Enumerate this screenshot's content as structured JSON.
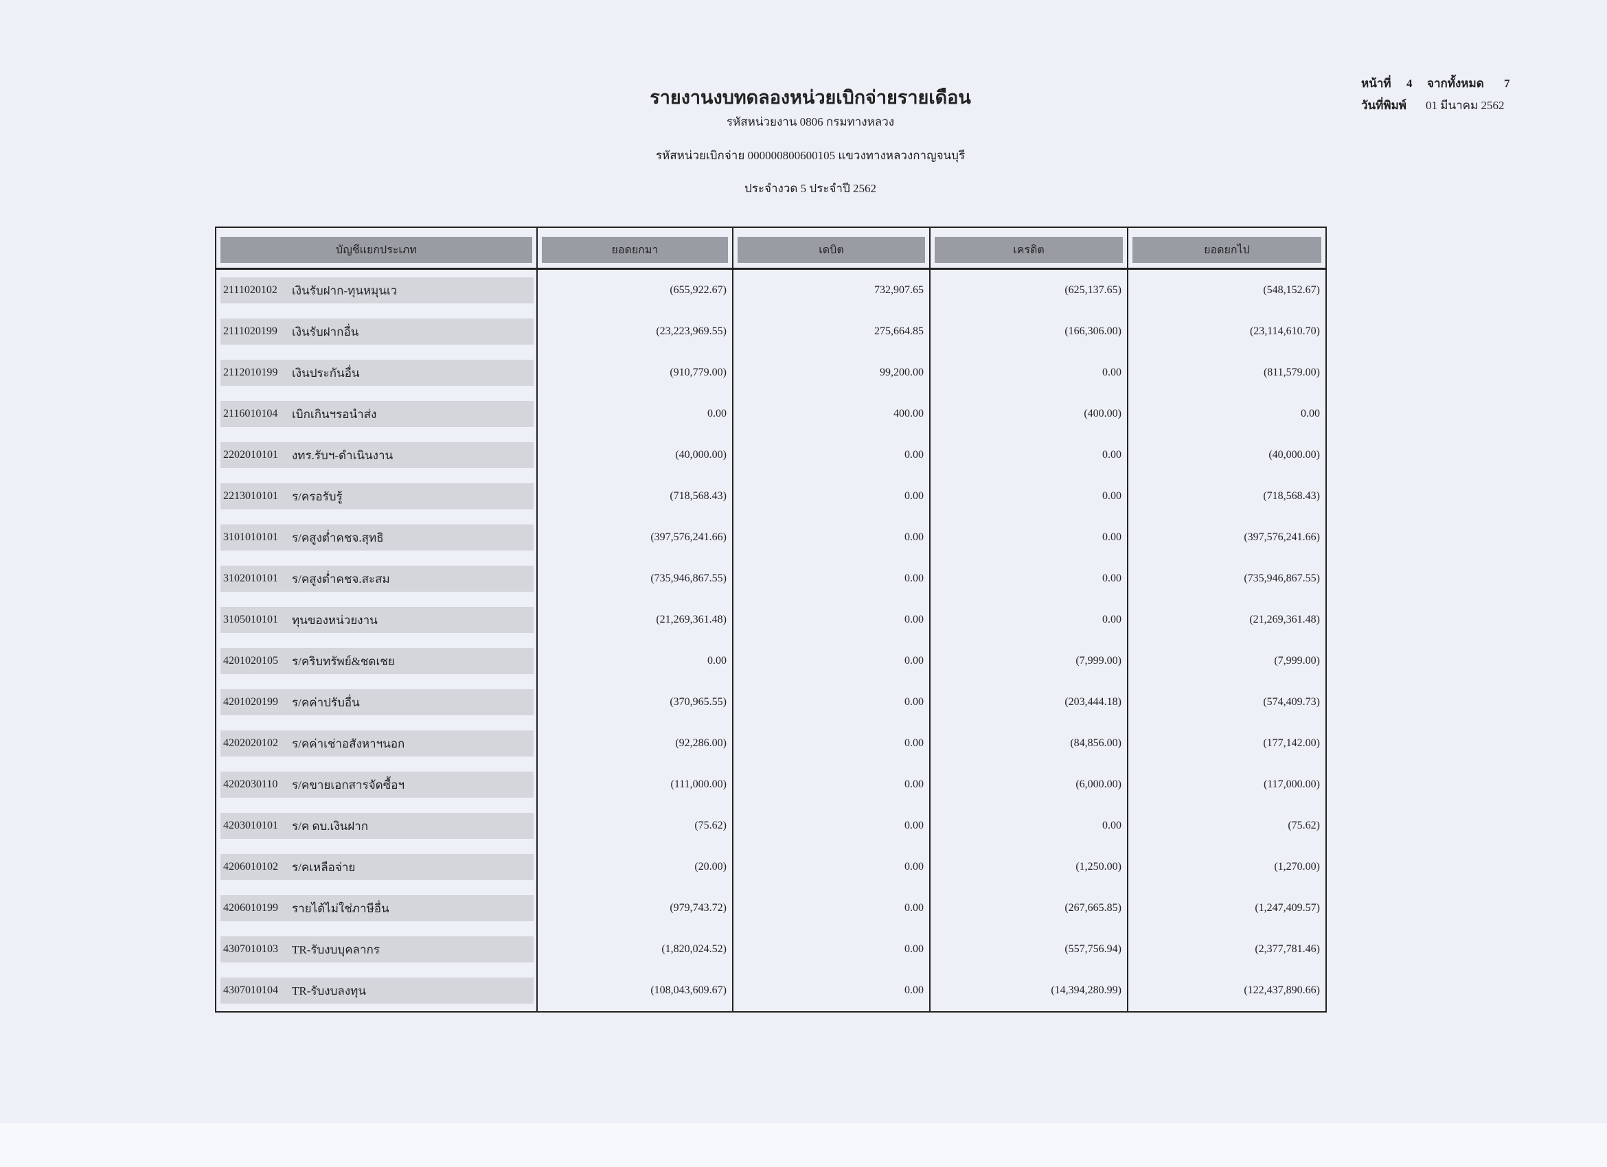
{
  "header": {
    "title": "รายงานงบทดลองหน่วยเบิกจ่ายรายเดือน",
    "agency": "รหัสหน่วยงาน 0806 กรมทางหลวง",
    "disbursing_unit": "รหัสหน่วยเบิกจ่าย 000000800600105 แขวงทางหลวงกาญจนบุรี",
    "period": "ประจำงวด 5 ประจำปี 2562",
    "page_label": "หน้าที่",
    "page_number": "4",
    "total_label": "จากทั้งหมด",
    "total_pages": "7",
    "print_date_label": "วันที่พิมพ์",
    "print_date": "01 มีนาคม 2562"
  },
  "table": {
    "columns": [
      "บัญชีแยกประเภท",
      "ยอดยกมา",
      "เดบิต",
      "เครดิต",
      "ยอดยกไป"
    ],
    "rows": [
      {
        "code": "2111020102",
        "name": "เงินรับฝาก-ทุนหมุนเว",
        "brought_forward": "(655,922.67)",
        "debit": "732,907.65",
        "credit": "(625,137.65)",
        "carried_forward": "(548,152.67)"
      },
      {
        "code": "2111020199",
        "name": "เงินรับฝากอื่น",
        "brought_forward": "(23,223,969.55)",
        "debit": "275,664.85",
        "credit": "(166,306.00)",
        "carried_forward": "(23,114,610.70)"
      },
      {
        "code": "2112010199",
        "name": "เงินประกันอื่น",
        "brought_forward": "(910,779.00)",
        "debit": "99,200.00",
        "credit": "0.00",
        "carried_forward": "(811,579.00)"
      },
      {
        "code": "2116010104",
        "name": "เบิกเกินฯรอนำส่ง",
        "brought_forward": "0.00",
        "debit": "400.00",
        "credit": "(400.00)",
        "carried_forward": "0.00"
      },
      {
        "code": "2202010101",
        "name": "งทร.รับฯ-ดำเนินงาน",
        "brought_forward": "(40,000.00)",
        "debit": "0.00",
        "credit": "0.00",
        "carried_forward": "(40,000.00)"
      },
      {
        "code": "2213010101",
        "name": "ร/ครอรับรู้",
        "brought_forward": "(718,568.43)",
        "debit": "0.00",
        "credit": "0.00",
        "carried_forward": "(718,568.43)"
      },
      {
        "code": "3101010101",
        "name": "ร/คสูงต่ำคชจ.สุทธิ",
        "brought_forward": "(397,576,241.66)",
        "debit": "0.00",
        "credit": "0.00",
        "carried_forward": "(397,576,241.66)"
      },
      {
        "code": "3102010101",
        "name": "ร/คสูงต่ำคชจ.สะสม",
        "brought_forward": "(735,946,867.55)",
        "debit": "0.00",
        "credit": "0.00",
        "carried_forward": "(735,946,867.55)"
      },
      {
        "code": "3105010101",
        "name": "ทุนของหน่วยงาน",
        "brought_forward": "(21,269,361.48)",
        "debit": "0.00",
        "credit": "0.00",
        "carried_forward": "(21,269,361.48)"
      },
      {
        "code": "4201020105",
        "name": "ร/คริบทรัพย์&ชดเชย",
        "brought_forward": "0.00",
        "debit": "0.00",
        "credit": "(7,999.00)",
        "carried_forward": "(7,999.00)"
      },
      {
        "code": "4201020199",
        "name": "ร/คค่าปรับอื่น",
        "brought_forward": "(370,965.55)",
        "debit": "0.00",
        "credit": "(203,444.18)",
        "carried_forward": "(574,409.73)"
      },
      {
        "code": "4202020102",
        "name": "ร/คค่าเช่าอสังหาฯนอก",
        "brought_forward": "(92,286.00)",
        "debit": "0.00",
        "credit": "(84,856.00)",
        "carried_forward": "(177,142.00)"
      },
      {
        "code": "4202030110",
        "name": "ร/คขายเอกสารจัดซื้อฯ",
        "brought_forward": "(111,000.00)",
        "debit": "0.00",
        "credit": "(6,000.00)",
        "carried_forward": "(117,000.00)"
      },
      {
        "code": "4203010101",
        "name": "ร/ค ดบ.เงินฝาก",
        "brought_forward": "(75.62)",
        "debit": "0.00",
        "credit": "0.00",
        "carried_forward": "(75.62)"
      },
      {
        "code": "4206010102",
        "name": "ร/คเหลือจ่าย",
        "brought_forward": "(20.00)",
        "debit": "0.00",
        "credit": "(1,250.00)",
        "carried_forward": "(1,270.00)"
      },
      {
        "code": "4206010199",
        "name": "รายได้ไม่ใช่ภาษีอื่น",
        "brought_forward": "(979,743.72)",
        "debit": "0.00",
        "credit": "(267,665.85)",
        "carried_forward": "(1,247,409.57)"
      },
      {
        "code": "4307010103",
        "name": "TR-รับงบบุคลากร",
        "brought_forward": "(1,820,024.52)",
        "debit": "0.00",
        "credit": "(557,756.94)",
        "carried_forward": "(2,377,781.46)"
      },
      {
        "code": "4307010104",
        "name": "TR-รับงบลงทุน",
        "brought_forward": "(108,043,609.67)",
        "debit": "0.00",
        "credit": "(14,394,280.99)",
        "carried_forward": "(122,437,890.66)"
      }
    ]
  },
  "colors": {
    "paper": "#edf0f7",
    "header_fill": "#9a9ca3",
    "row_fill": "#d4d6dc"
  }
}
